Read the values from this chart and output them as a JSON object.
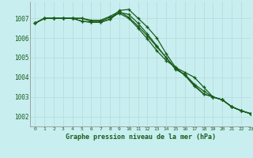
{
  "xlabel": "Graphe pression niveau de la mer (hPa)",
  "bg_color": "#c8eef0",
  "grid_color": "#b8dde0",
  "line_color": "#1a5c1a",
  "ylim": [
    1001.5,
    1007.85
  ],
  "xlim": [
    -0.5,
    23
  ],
  "yticks": [
    1002,
    1003,
    1004,
    1005,
    1006,
    1007
  ],
  "xticks": [
    0,
    1,
    2,
    3,
    4,
    5,
    6,
    7,
    8,
    9,
    10,
    11,
    12,
    13,
    14,
    15,
    16,
    17,
    18,
    19,
    20,
    21,
    22,
    23
  ],
  "series": [
    [
      1006.75,
      1007.0,
      1007.0,
      1007.0,
      1007.0,
      1007.0,
      1006.85,
      1006.85,
      1007.05,
      1007.25,
      1007.0,
      1006.5,
      1005.95,
      1005.35,
      1004.85,
      1004.5,
      1004.1,
      1003.55,
      1003.15,
      1003.0,
      1002.85,
      1002.5,
      1002.3,
      1002.15
    ],
    [
      1006.75,
      1007.0,
      1007.0,
      1007.0,
      1007.0,
      1006.85,
      1006.8,
      1006.8,
      1006.95,
      1007.3,
      1007.2,
      1006.75,
      1006.2,
      1005.6,
      1005.0,
      1004.4,
      1004.15,
      1003.65,
      1003.3,
      1003.0,
      1002.85,
      1002.5,
      1002.3,
      1002.15
    ],
    [
      1006.75,
      1007.0,
      1007.0,
      1007.0,
      1007.0,
      1006.85,
      1006.8,
      1006.8,
      1006.95,
      1007.4,
      1007.45,
      1007.0,
      1006.55,
      1006.0,
      1005.2,
      1004.5,
      1004.25,
      1004.0,
      1003.5,
      1003.0,
      1002.85,
      1002.5,
      1002.3,
      1002.15
    ],
    [
      1006.75,
      1007.0,
      1007.0,
      1007.0,
      1007.0,
      1007.0,
      1006.9,
      1006.9,
      1007.1,
      1007.35,
      1007.05,
      1006.6,
      1006.1,
      1005.55,
      1005.0,
      1004.45,
      1004.1,
      1003.6,
      1003.15,
      1003.0,
      1002.85,
      1002.5,
      1002.3,
      1002.15
    ]
  ]
}
